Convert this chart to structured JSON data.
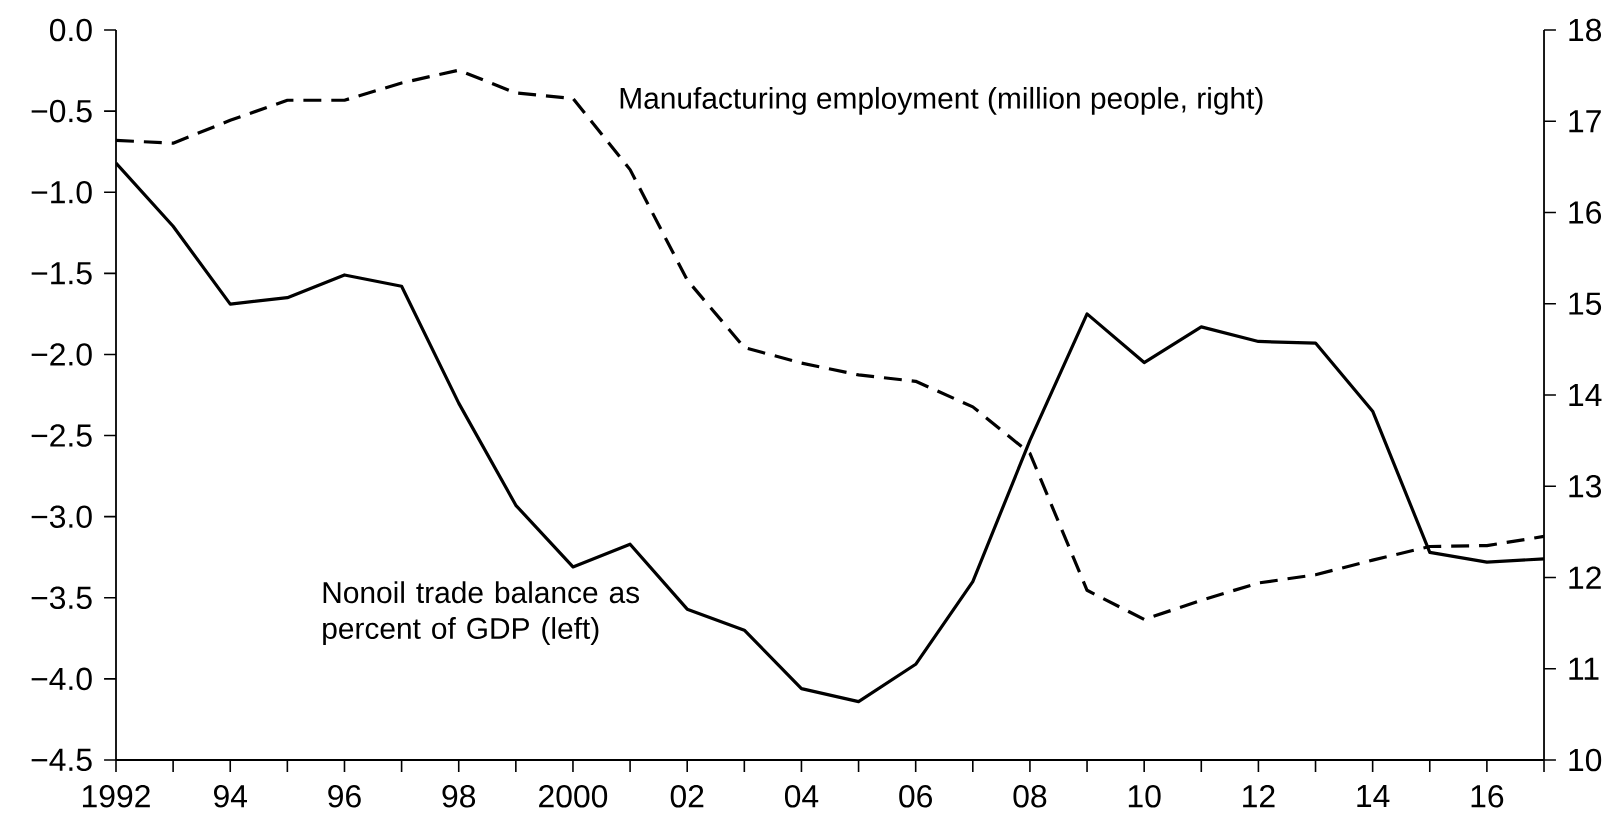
{
  "chart_data": {
    "type": "line",
    "x": [
      1992,
      1993,
      1994,
      1995,
      1996,
      1997,
      1998,
      1999,
      2000,
      2001,
      2002,
      2003,
      2004,
      2005,
      2006,
      2007,
      2008,
      2009,
      2010,
      2011,
      2012,
      2013,
      2014,
      2015,
      2016,
      2017
    ],
    "series": [
      {
        "name": "Nonoil trade balance as percent of GDP (left)",
        "color": "#000000",
        "line_style": "solid",
        "axis": "y",
        "values": [
          -0.82,
          -1.21,
          -1.69,
          -1.65,
          -1.51,
          -1.58,
          -2.3,
          -2.93,
          -3.31,
          -3.17,
          -3.57,
          -3.7,
          -4.06,
          -4.14,
          -3.91,
          -3.4,
          -2.53,
          -1.75,
          -2.05,
          -1.83,
          -1.92,
          -1.93,
          -2.35,
          -3.22,
          -3.28,
          -3.26
        ]
      },
      {
        "name": "Manufacturing employment (million people, right)",
        "color": "#000000",
        "line_style": "dashed",
        "axis": "y2",
        "values": [
          16.79,
          16.76,
          17.01,
          17.23,
          17.23,
          17.42,
          17.56,
          17.31,
          17.25,
          16.47,
          15.26,
          14.52,
          14.35,
          14.22,
          14.15,
          13.87,
          13.36,
          11.86,
          11.54,
          11.75,
          11.94,
          12.03,
          12.19,
          12.34,
          12.35,
          12.45
        ]
      }
    ],
    "xlim": [
      1992,
      2017
    ],
    "xticks": [
      1992,
      {
        "value": 1993,
        "label": null
      },
      {
        "value": 1994,
        "label": "94"
      },
      {
        "value": 1995,
        "label": null
      },
      {
        "value": 1996,
        "label": "96"
      },
      {
        "value": 1997,
        "label": null
      },
      {
        "value": 1998,
        "label": "98"
      },
      {
        "value": 1999,
        "label": null
      },
      2000,
      {
        "value": 2001,
        "label": null
      },
      {
        "value": 2002,
        "label": "02"
      },
      {
        "value": 2003,
        "label": null
      },
      {
        "value": 2004,
        "label": "04"
      },
      {
        "value": 2005,
        "label": null
      },
      {
        "value": 2006,
        "label": "06"
      },
      {
        "value": 2007,
        "label": null
      },
      {
        "value": 2008,
        "label": "08"
      },
      {
        "value": 2009,
        "label": null
      },
      {
        "value": 2010,
        "label": "10"
      },
      {
        "value": 2011,
        "label": null
      },
      {
        "value": 2012,
        "label": "12"
      },
      {
        "value": 2013,
        "label": null
      },
      {
        "value": 2014,
        "label": "14"
      },
      {
        "value": 2015,
        "label": null
      },
      {
        "value": 2016,
        "label": "16"
      },
      {
        "value": 2017,
        "label": null
      }
    ],
    "ylim": [
      -4.5,
      0.0
    ],
    "yticks": [
      {
        "value": -4.5,
        "label": "−4.5"
      },
      {
        "value": -4.0,
        "label": "−4.0"
      },
      {
        "value": -3.5,
        "label": "−3.5"
      },
      {
        "value": -3.0,
        "label": "−3.0"
      },
      {
        "value": -2.5,
        "label": "−2.5"
      },
      {
        "value": -2.0,
        "label": "−2.0"
      },
      {
        "value": -1.5,
        "label": "−1.5"
      },
      {
        "value": -1.0,
        "label": "−1.0"
      },
      {
        "value": -0.5,
        "label": "−0.5"
      },
      {
        "value": 0.0,
        "label": "0.0"
      }
    ],
    "y2lim": [
      10,
      18
    ],
    "y2ticks": [
      10,
      11,
      12,
      13,
      14,
      15,
      16,
      17,
      18
    ],
    "grid": false,
    "legend": false,
    "marker": "none"
  }
}
